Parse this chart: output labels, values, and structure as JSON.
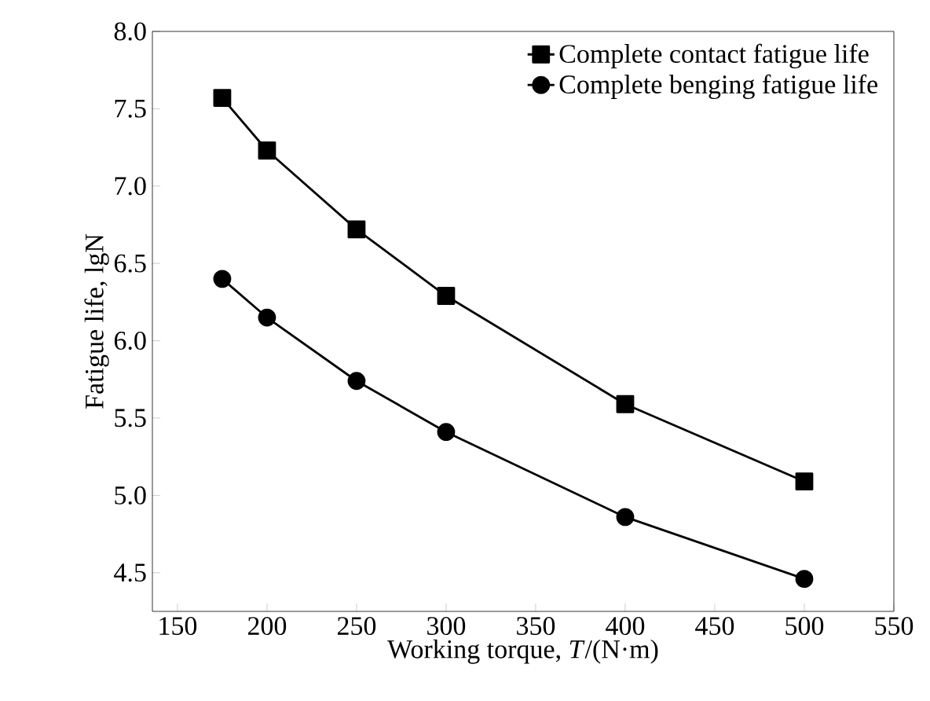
{
  "chart_data": {
    "type": "line",
    "xlabel": "Working torque, *T*/(N·m)",
    "ylabel": "Fatigue life, lgN",
    "x": [
      175,
      200,
      250,
      300,
      400,
      500
    ],
    "series": [
      {
        "name": "Complete contact fatigue life",
        "color": "#000000",
        "marker": "square",
        "values": [
          7.57,
          7.23,
          6.72,
          6.29,
          5.59,
          5.09
        ]
      },
      {
        "name": "Complete benging fatigue life",
        "color": "#000000",
        "marker": "circle",
        "values": [
          6.4,
          6.15,
          5.74,
          5.41,
          4.86,
          4.46
        ]
      }
    ],
    "xlim": [
      136,
      550
    ],
    "ylim": [
      4.25,
      8.0
    ],
    "xticks": [
      150,
      200,
      250,
      300,
      350,
      400,
      450,
      500,
      550
    ],
    "yticks": [
      {
        "value": 4.5,
        "label": "4.5"
      },
      {
        "value": 5.0,
        "label": "5.0"
      },
      {
        "value": 5.5,
        "label": "5.5"
      },
      {
        "value": 6.0,
        "label": "6.0"
      },
      {
        "value": 6.5,
        "label": "6.5"
      },
      {
        "value": 7.0,
        "label": "7.0"
      },
      {
        "value": 7.5,
        "label": "7.5"
      },
      {
        "value": 8.0,
        "label": "8.0"
      }
    ],
    "legend": "top right",
    "grid": false,
    "line_style": "solid"
  }
}
